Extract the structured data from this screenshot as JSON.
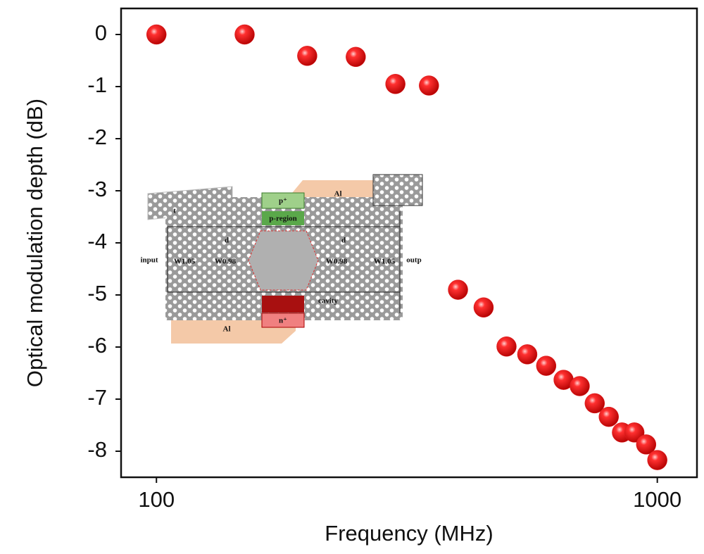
{
  "chart_data": {
    "type": "scatter",
    "x_label": "Frequency (MHz)",
    "y_label": "Optical modulation depth (dB)",
    "x": [
      100,
      150,
      200,
      250,
      300,
      350,
      400,
      450,
      500,
      550,
      600,
      650,
      700,
      750,
      800,
      850,
      900,
      950,
      1000
    ],
    "values": [
      0,
      0,
      -0.41,
      -0.43,
      -0.95,
      -0.98,
      -4.9,
      -5.24,
      -5.99,
      -6.14,
      -6.36,
      -6.63,
      -6.75,
      -7.08,
      -7.34,
      -7.64,
      -7.64,
      -7.87,
      -8.17
    ],
    "color": "#e31a1c",
    "xscale": "log",
    "xlim": [
      85,
      1200
    ],
    "xticks": [
      100,
      1000
    ],
    "ylim": [
      -8.5,
      0.5
    ],
    "yticks": [
      0,
      -1,
      -2,
      -3,
      -4,
      -5,
      -6,
      -7,
      -8
    ],
    "grid": false,
    "annotations": [
      "Al",
      "p⁺",
      "p-region",
      "input",
      "W1.05",
      "W0.98",
      "cavity",
      "W0.98",
      "W1.05",
      "outp",
      "n⁺",
      "Al",
      "t",
      "d",
      "d"
    ]
  }
}
